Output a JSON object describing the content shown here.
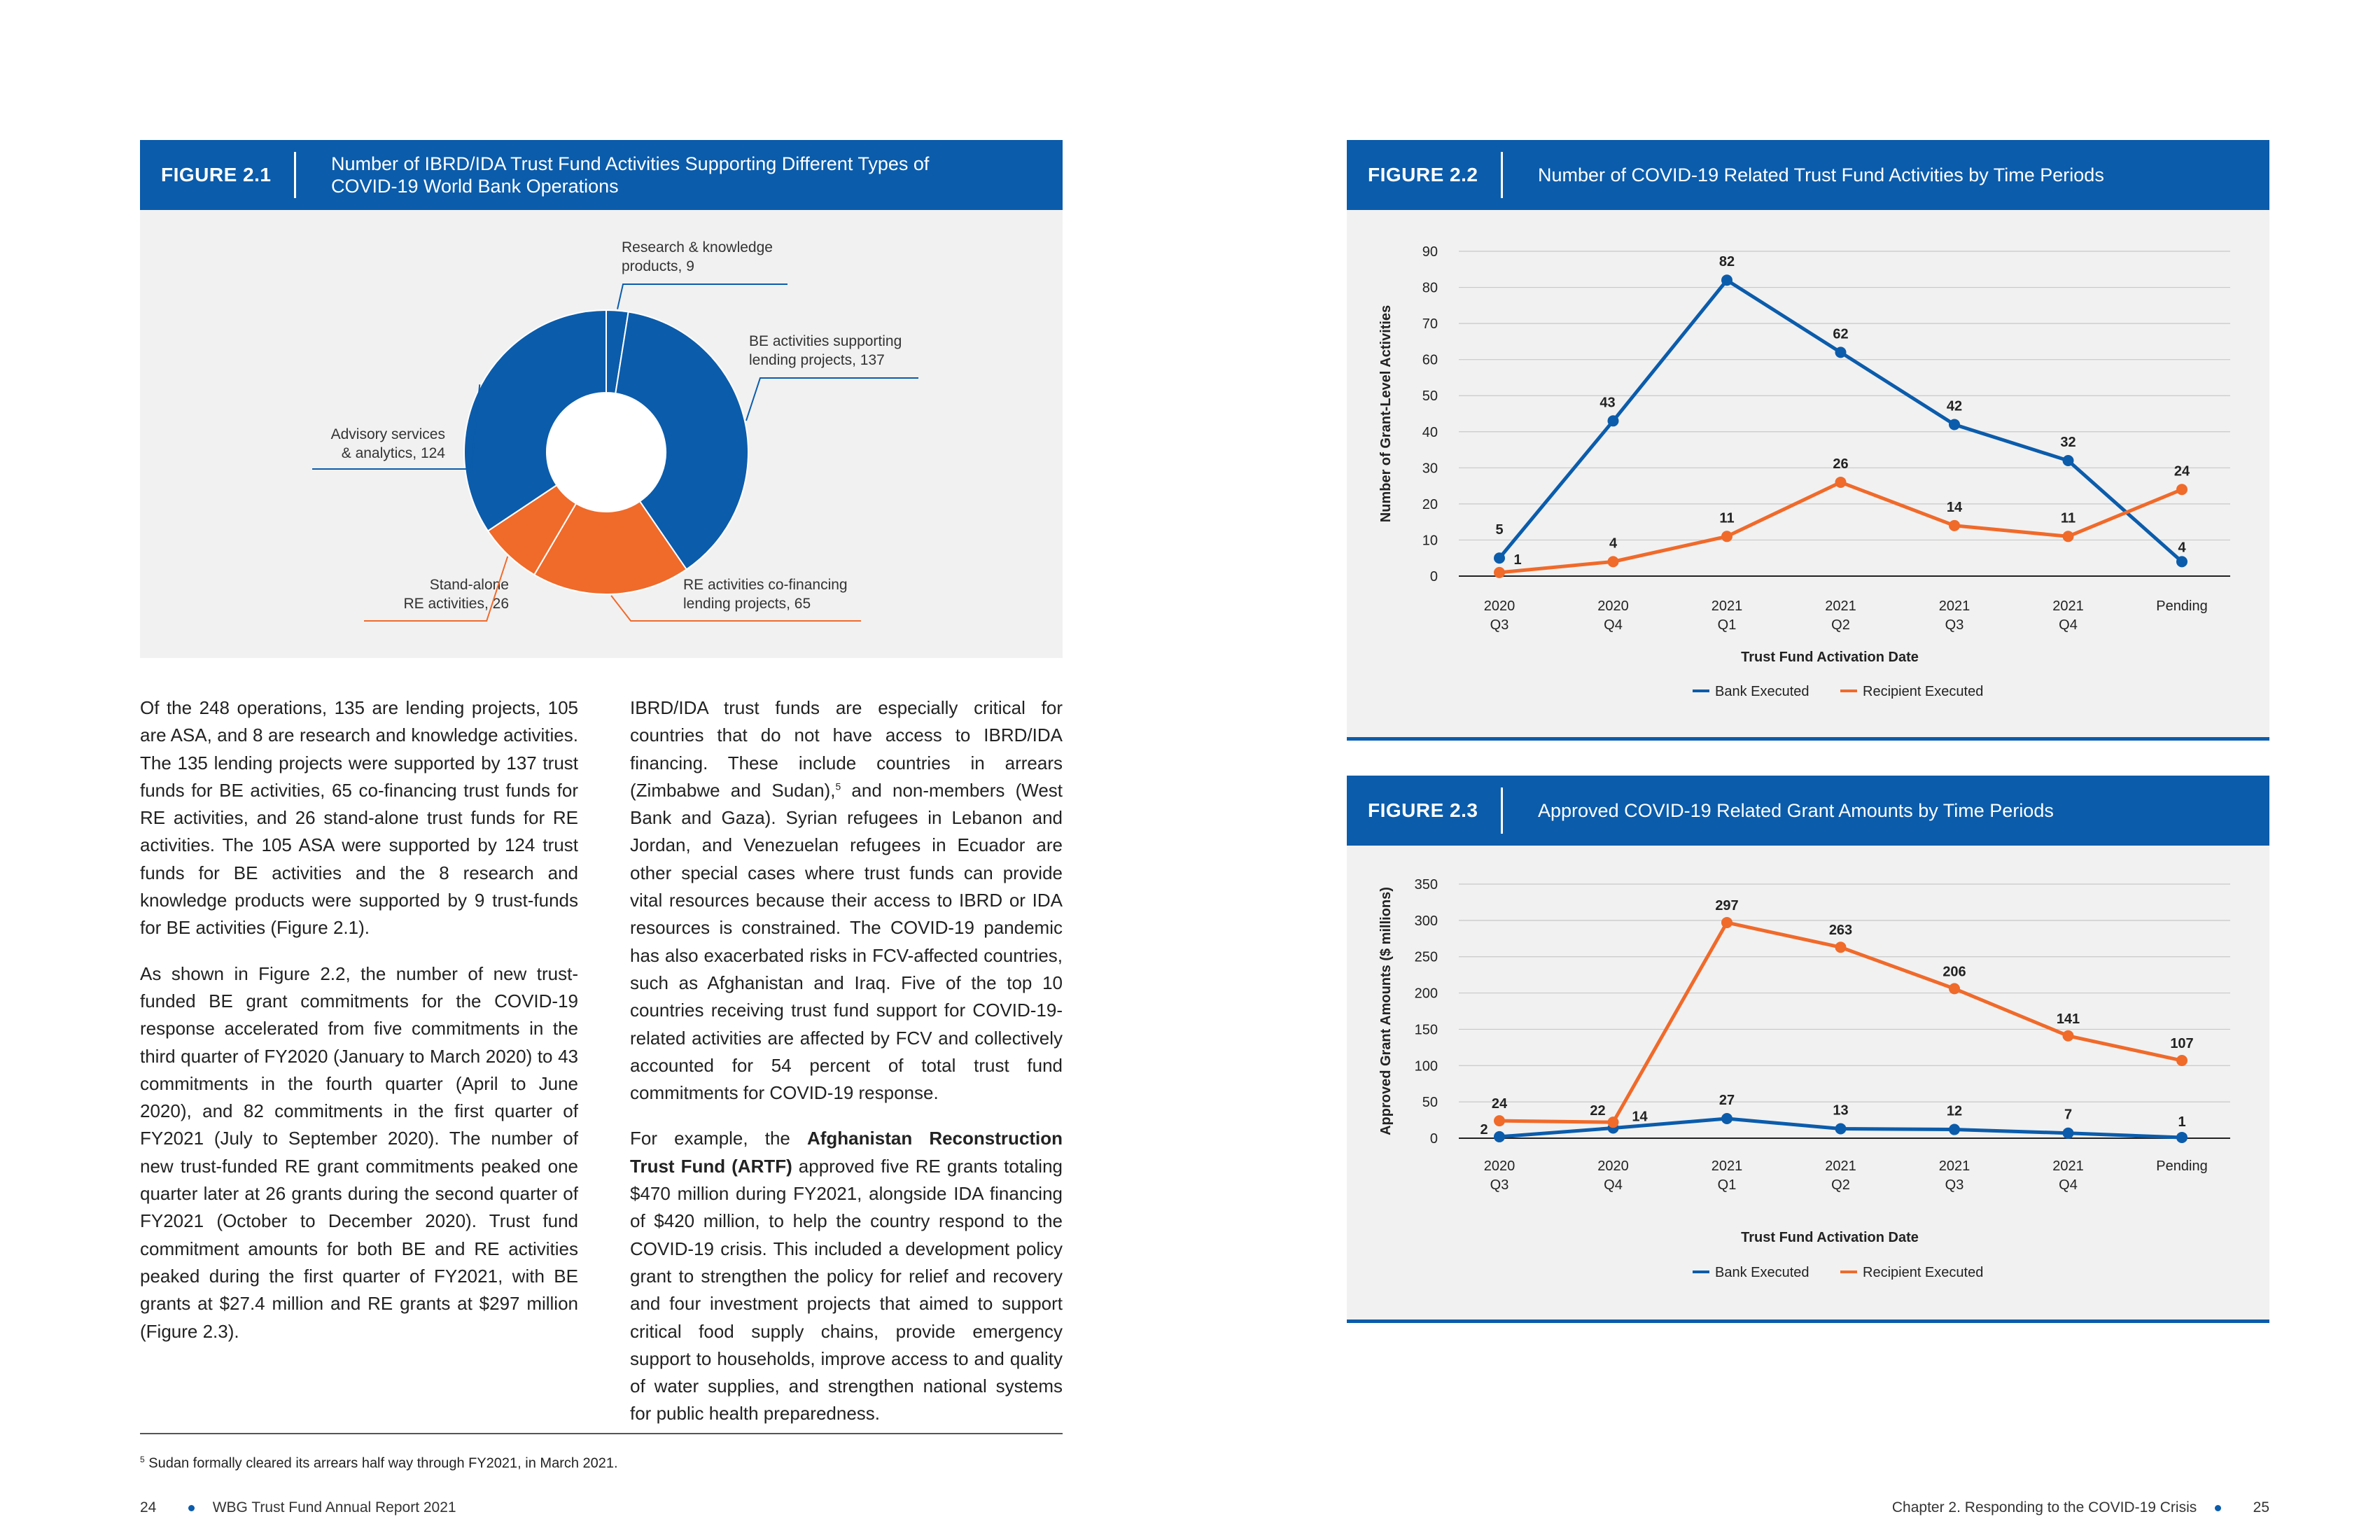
{
  "figure1": {
    "label": "FIGURE 2.1",
    "title_line1": "Number of IBRD/IDA Trust Fund Activities Supporting Different Types of",
    "title_line2": "COVID-19 World Bank Operations",
    "chart_data": {
      "type": "pie",
      "labels": [
        "Research & knowledge products",
        "BE activities supporting lending projects",
        "RE activities co-financing lending projects",
        "Stand-alone RE activities",
        "Advisory services & analytics"
      ],
      "values": [
        9,
        137,
        65,
        26,
        124
      ],
      "colors": [
        "#0b5cab",
        "#0b5cab",
        "#f06a2a",
        "#f06a2a",
        "#0b5cab"
      ],
      "annotations": {
        "research": [
          "Research & knowledge",
          "products, 9"
        ],
        "be_lending": [
          "BE activities supporting",
          "lending projects, 137"
        ],
        "re_cofin": [
          "RE activities co-financing",
          "lending projects, 65"
        ],
        "standalone": [
          "Stand-alone",
          "RE activities, 26"
        ],
        "asa": [
          "Advisory services",
          "& analytics, 124"
        ]
      }
    }
  },
  "figure2": {
    "label": "FIGURE 2.2",
    "title": "Number of COVID-19 Related Trust Fund Activities by Time Periods",
    "chart_data": {
      "type": "line",
      "categories": [
        [
          "2020",
          "Q3"
        ],
        [
          "2020",
          "Q4"
        ],
        [
          "2021",
          "Q1"
        ],
        [
          "2021",
          "Q2"
        ],
        [
          "2021",
          "Q3"
        ],
        [
          "2021",
          "Q4"
        ],
        [
          "Pending",
          ""
        ]
      ],
      "series": [
        {
          "name": "Bank Executed",
          "values": [
            5,
            43,
            82,
            62,
            42,
            32,
            4
          ],
          "color": "#0b5cab"
        },
        {
          "name": "Recipient Executed",
          "values": [
            1,
            4,
            11,
            26,
            14,
            11,
            24
          ],
          "color": "#f06a2a"
        }
      ],
      "xlabel": "Trust Fund Activation Date",
      "ylabel": "Number of Grant-Level Activities",
      "ylim": [
        0,
        90
      ],
      "yticks": [
        0,
        10,
        20,
        30,
        40,
        50,
        60,
        70,
        80,
        90
      ],
      "grid": true,
      "legend": "bottom"
    }
  },
  "figure3": {
    "label": "FIGURE 2.3",
    "title": "Approved COVID-19 Related Grant Amounts by Time Periods",
    "chart_data": {
      "type": "line",
      "categories": [
        [
          "2020",
          "Q3"
        ],
        [
          "2020",
          "Q4"
        ],
        [
          "2021",
          "Q1"
        ],
        [
          "2021",
          "Q2"
        ],
        [
          "2021",
          "Q3"
        ],
        [
          "2021",
          "Q4"
        ],
        [
          "Pending",
          ""
        ]
      ],
      "series": [
        {
          "name": "Bank Executed",
          "values": [
            2,
            14,
            27,
            13,
            12,
            7,
            1
          ],
          "color": "#0b5cab"
        },
        {
          "name": "Recipient Executed",
          "values": [
            24,
            22,
            297,
            263,
            206,
            141,
            107
          ],
          "color": "#f06a2a"
        }
      ],
      "xlabel": "Trust Fund Activation Date",
      "ylabel": "Approved Grant Amounts ($ millions)",
      "ylim": [
        0,
        350
      ],
      "yticks": [
        0,
        50,
        100,
        150,
        200,
        250,
        300,
        350
      ],
      "grid": true,
      "legend": "bottom"
    }
  },
  "text": {
    "col1_p1": "Of the 248 operations, 135 are lending projects, 105 are ASA, and 8 are research and knowledge activities. The 135 lending projects were supported by 137 trust funds for BE activities, 65 co-financing trust funds for RE activities, and 26 stand-alone trust funds for RE activities. The 105 ASA were supported by 124 trust funds for BE activities and the 8 research and knowledge products were supported by 9 trust-funds for BE activities (Figure 2.1).",
    "col1_p2": "As shown in Figure 2.2, the number of new trust-funded BE grant commitments for the COVID-19 response accelerated from five commitments in the third quarter of FY2020 (January to March 2020) to 43 commitments in the fourth quarter (April to June 2020), and 82 commitments in the first quarter of FY2021 (July to September 2020). The number of new trust-funded RE grant commitments peaked one quarter later at 26 grants during the second quarter of FY2021 (October to December 2020). Trust fund commitment amounts for both BE and RE activities peaked during the first quarter of FY2021, with BE grants at $27.4 million and RE grants at $297 million (Figure 2.3).",
    "col2_p1a": "IBRD/IDA trust funds are especially critical for countries that do not have access to IBRD/IDA financing. These include countries in arrears (Zimbabwe and Sudan),",
    "col2_p1_sup": "5",
    "col2_p1b": " and non-members (West Bank and Gaza). Syrian refugees in Lebanon and Jordan, and Venezuelan refugees in Ecuador are other special cases where trust funds can provide vital resources because their access to IBRD or IDA resources is constrained. The COVID-19 pandemic has also exacerbated risks in FCV-affected countries, such as Afghanistan and Iraq. Five of the top 10 countries receiving trust fund support for COVID-19-related activities are affected by FCV and collectively accounted for 54 percent of total trust fund commitments for COVID-19 response.",
    "col2_p2a": "For example, the ",
    "col2_p2_bold": "Afghanistan Reconstruction Trust Fund (ARTF)",
    "col2_p2b": " approved five RE grants totaling $470 million during FY2021, alongside IDA financing of $420 million, to help the country respond to the COVID-19 crisis. This included a development policy grant to strengthen the policy for relief and recovery and four investment projects that aimed to support critical food supply chains, provide emergency support to households, improve access to and quality of water supplies, and strengthen national systems for public health preparedness."
  },
  "footnote": {
    "mark": "5",
    "text": " Sudan formally cleared its arrears half way through FY2021, in March 2021."
  },
  "footer": {
    "left_page": "24",
    "left_title": "WBG Trust Fund Annual Report 2021",
    "right_title": "Chapter 2. Responding to the COVID-19 Crisis",
    "right_page": "25"
  }
}
